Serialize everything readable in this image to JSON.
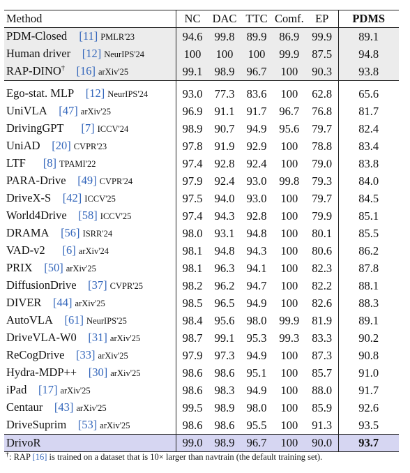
{
  "header": {
    "method": "Method",
    "cols": [
      "NC",
      "DAC",
      "TTC",
      "Comf.",
      "EP"
    ],
    "pdms": "PDMS"
  },
  "group1": [
    {
      "name": "PDM-Closed",
      "sup": "",
      "ref": "[11]",
      "venue": "PMLR'23",
      "vals": [
        "94.6",
        "99.8",
        "89.9",
        "86.9",
        "99.9"
      ],
      "pdms": "89.1"
    },
    {
      "name": "Human driver",
      "sup": "",
      "ref": "[12]",
      "venue": "NeurIPS'24",
      "vals": [
        "100",
        "100",
        "100",
        "99.9",
        "87.5"
      ],
      "pdms": "94.8"
    },
    {
      "name": "RAP-DINO",
      "sup": "†",
      "ref": "[16]",
      "venue": "arXiv'25",
      "vals": [
        "99.1",
        "98.9",
        "96.7",
        "100",
        "90.3"
      ],
      "pdms": "93.8"
    }
  ],
  "group2": [
    {
      "name": "Ego-stat. MLP",
      "ref": "[12]",
      "venue": "NeurIPS'24",
      "vals": [
        "93.0",
        "77.3",
        "83.6",
        "100",
        "62.8"
      ],
      "pdms": "65.6"
    },
    {
      "name": "UniVLA",
      "ref": "[47]",
      "venue": "arXiv'25",
      "vals": [
        "96.9",
        "91.1",
        "91.7",
        "96.7",
        "76.8"
      ],
      "pdms": "81.7"
    },
    {
      "name": "DrivingGPT",
      "ref": "[7]",
      "venue": "ICCV'24",
      "vals": [
        "98.9",
        "90.7",
        "94.9",
        "95.6",
        "79.7"
      ],
      "pdms": "82.4"
    },
    {
      "name": "UniAD",
      "ref": "[20]",
      "venue": "CVPR'23",
      "vals": [
        "97.8",
        "91.9",
        "92.9",
        "100",
        "78.8"
      ],
      "pdms": "83.4"
    },
    {
      "name": "LTF",
      "ref": "[8]",
      "venue": "TPAMI'22",
      "vals": [
        "97.4",
        "92.8",
        "92.4",
        "100",
        "79.0"
      ],
      "pdms": "83.8"
    },
    {
      "name": "PARA-Drive",
      "ref": "[49]",
      "venue": "CVPR'24",
      "vals": [
        "97.9",
        "92.4",
        "93.0",
        "99.8",
        "79.3"
      ],
      "pdms": "84.0"
    },
    {
      "name": "DriveX-S",
      "ref": "[42]",
      "venue": "ICCV'25",
      "vals": [
        "97.5",
        "94.0",
        "93.0",
        "100",
        "79.7"
      ],
      "pdms": "84.5"
    },
    {
      "name": "World4Drive",
      "ref": "[58]",
      "venue": "ICCV'25",
      "vals": [
        "97.4",
        "94.3",
        "92.8",
        "100",
        "79.9"
      ],
      "pdms": "85.1"
    },
    {
      "name": "DRAMA",
      "ref": "[56]",
      "venue": "ISRR'24",
      "vals": [
        "98.0",
        "93.1",
        "94.8",
        "100",
        "80.1"
      ],
      "pdms": "85.5"
    },
    {
      "name": "VAD-v2",
      "ref": "[6]",
      "venue": "arXiv'24",
      "vals": [
        "98.1",
        "94.8",
        "94.3",
        "100",
        "80.6"
      ],
      "pdms": "86.2"
    },
    {
      "name": "PRIX",
      "ref": "[50]",
      "venue": "arXiv'25",
      "vals": [
        "98.1",
        "96.3",
        "94.1",
        "100",
        "82.3"
      ],
      "pdms": "87.8"
    },
    {
      "name": "DiffusionDrive",
      "ref": "[37]",
      "venue": "CVPR'25",
      "vals": [
        "98.2",
        "96.2",
        "94.7",
        "100",
        "82.2"
      ],
      "pdms": "88.1"
    },
    {
      "name": "DIVER",
      "ref": "[44]",
      "venue": "arXiv'25",
      "vals": [
        "98.5",
        "96.5",
        "94.9",
        "100",
        "82.6"
      ],
      "pdms": "88.3"
    },
    {
      "name": "AutoVLA",
      "ref": "[61]",
      "venue": "NeurIPS'25",
      "vals": [
        "98.4",
        "95.6",
        "98.0",
        "99.9",
        "81.9"
      ],
      "pdms": "89.1"
    },
    {
      "name": "DriveVLA-W0",
      "ref": "[31]",
      "venue": "arXiv'25",
      "vals": [
        "98.7",
        "99.1",
        "95.3",
        "99.3",
        "83.3"
      ],
      "pdms": "90.2"
    },
    {
      "name": "ReCogDrive",
      "ref": "[33]",
      "venue": "arXiv'25",
      "vals": [
        "97.9",
        "97.3",
        "94.9",
        "100",
        "87.3"
      ],
      "pdms": "90.8"
    },
    {
      "name": "Hydra-MDP++",
      "ref": "[30]",
      "venue": "arXiv'25",
      "vals": [
        "98.6",
        "98.6",
        "95.1",
        "100",
        "85.7"
      ],
      "pdms": "91.0"
    },
    {
      "name": "iPad",
      "ref": "[17]",
      "venue": "arXiv'25",
      "vals": [
        "98.6",
        "98.3",
        "94.9",
        "100",
        "88.0"
      ],
      "pdms": "91.7"
    },
    {
      "name": "Centaur",
      "ref": "[43]",
      "venue": "arXiv'25",
      "vals": [
        "99.5",
        "98.9",
        "98.0",
        "100",
        "85.9"
      ],
      "pdms": "92.6"
    },
    {
      "name": "DriveSuprim",
      "ref": "[53]",
      "venue": "arXiv'25",
      "vals": [
        "98.6",
        "98.6",
        "95.5",
        "100",
        "91.3"
      ],
      "pdms": "93.5"
    }
  ],
  "ours": {
    "name": "DrivoR",
    "vals": [
      "99.0",
      "98.9",
      "96.7",
      "100",
      "90.0"
    ],
    "pdms": "93.7"
  },
  "footnote": {
    "mark": "†",
    "pre": ": RAP ",
    "ref": "[16]",
    "post": " is trained on a dataset that is 10× larger than navtrain (the default training set)."
  }
}
